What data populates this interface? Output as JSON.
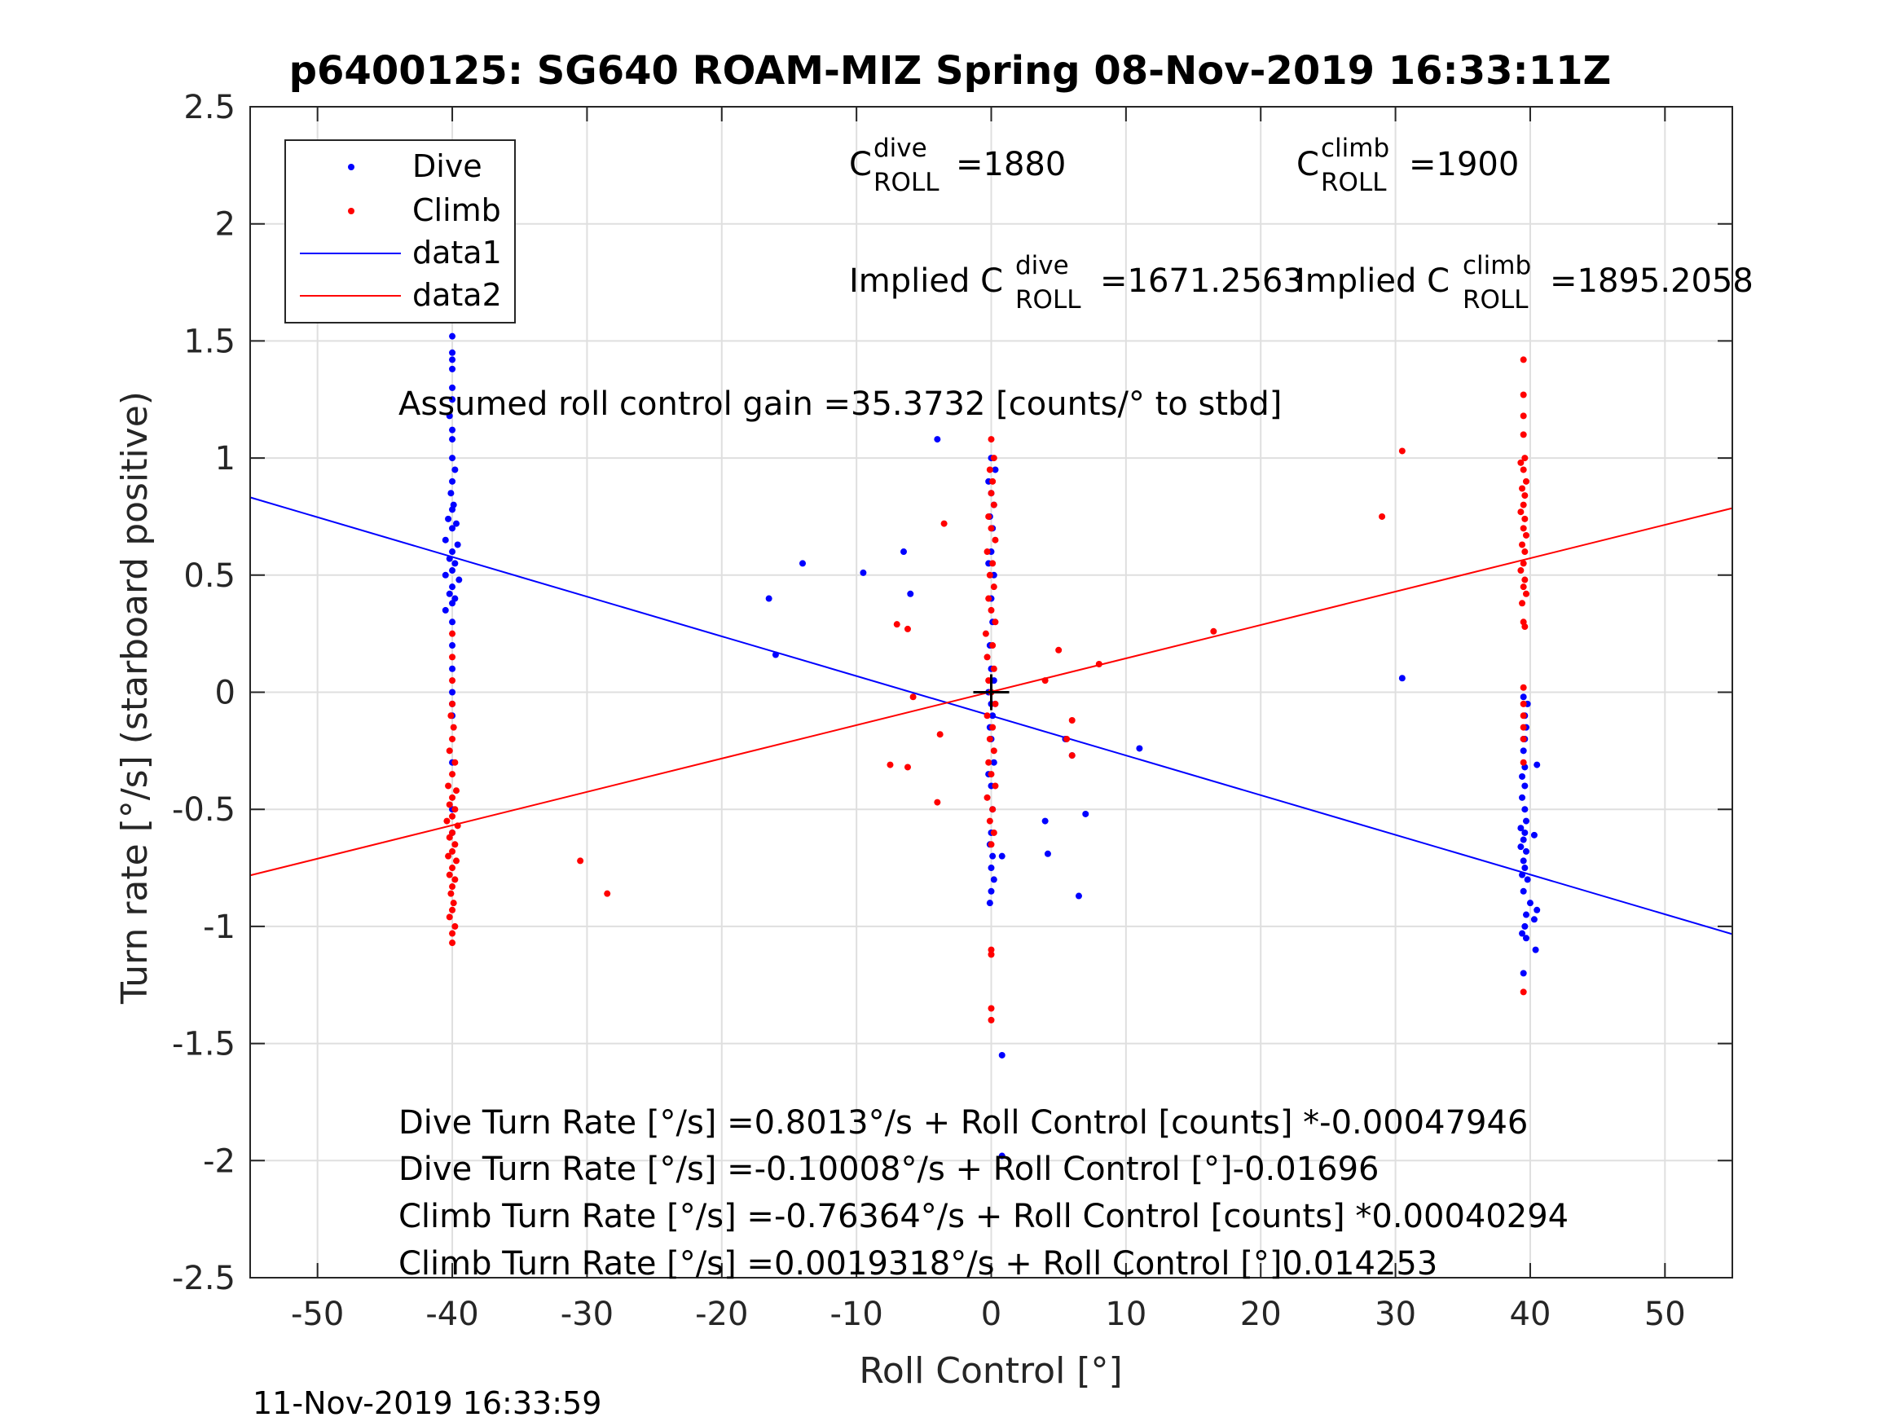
{
  "chart_data": {
    "type": "scatter",
    "title": "p6400125: SG640 ROAM-MIZ Spring 08-Nov-2019 16:33:11Z",
    "xlabel": "Roll Control [°]",
    "ylabel": "Turn rate [°/s] (starboard positive)",
    "xlim": [
      -55,
      55
    ],
    "ylim": [
      -2.5,
      2.5
    ],
    "xticks": [
      -50,
      -40,
      -30,
      -20,
      -10,
      0,
      10,
      20,
      30,
      40,
      50
    ],
    "yticks": [
      -2.5,
      -2,
      -1.5,
      -1,
      -0.5,
      0,
      0.5,
      1,
      1.5,
      2,
      2.5
    ],
    "grid": true,
    "legend_position": "top-left",
    "legend": [
      "Dive",
      "Climb",
      "data1",
      "data2"
    ],
    "colors": {
      "dive": "#0000ff",
      "climb": "#ff0000",
      "axes": "#262626",
      "grid": "#dfdfdf"
    },
    "series": [
      {
        "name": "Dive",
        "style": "points",
        "points": [
          [
            -40,
            1.87
          ],
          [
            -40,
            1.6
          ],
          [
            -40,
            1.52
          ],
          [
            -40,
            1.45
          ],
          [
            -40,
            1.42
          ],
          [
            -40,
            1.38
          ],
          [
            -40,
            1.3
          ],
          [
            -40,
            1.25
          ],
          [
            -40.2,
            1.18
          ],
          [
            -40,
            1.12
          ],
          [
            -40,
            1.08
          ],
          [
            -40,
            1.0
          ],
          [
            -39.8,
            0.95
          ],
          [
            -40,
            0.9
          ],
          [
            -40.1,
            0.85
          ],
          [
            -39.9,
            0.8
          ],
          [
            -40,
            0.78
          ],
          [
            -40.3,
            0.74
          ],
          [
            -39.7,
            0.72
          ],
          [
            -40,
            0.7
          ],
          [
            -40.5,
            0.65
          ],
          [
            -39.6,
            0.63
          ],
          [
            -40,
            0.6
          ],
          [
            -40.2,
            0.57
          ],
          [
            -39.8,
            0.55
          ],
          [
            -40,
            0.52
          ],
          [
            -40.5,
            0.5
          ],
          [
            -39.5,
            0.48
          ],
          [
            -40,
            0.45
          ],
          [
            -40.2,
            0.42
          ],
          [
            -39.8,
            0.4
          ],
          [
            -40,
            0.38
          ],
          [
            -40.5,
            0.35
          ],
          [
            -40,
            0.3
          ],
          [
            -40,
            0.2
          ],
          [
            -40,
            0.1
          ],
          [
            -40,
            0.0
          ],
          [
            -40,
            -0.05
          ],
          [
            -40,
            -0.1
          ],
          [
            -40,
            -0.3
          ],
          [
            -40,
            -0.5
          ],
          [
            -40,
            -0.6
          ],
          [
            -16.5,
            0.4
          ],
          [
            -14,
            0.55
          ],
          [
            -9.5,
            0.51
          ],
          [
            -6.5,
            0.6
          ],
          [
            -6,
            0.42
          ],
          [
            -4,
            1.08
          ],
          [
            -16,
            0.16
          ],
          [
            0,
            1.0
          ],
          [
            0.3,
            0.95
          ],
          [
            -0.2,
            0.9
          ],
          [
            0,
            0.85
          ],
          [
            0.2,
            0.8
          ],
          [
            -0.1,
            0.75
          ],
          [
            0.1,
            0.7
          ],
          [
            0,
            0.6
          ],
          [
            -0.2,
            0.55
          ],
          [
            0.2,
            0.5
          ],
          [
            0,
            0.4
          ],
          [
            0.1,
            0.3
          ],
          [
            -0.1,
            0.2
          ],
          [
            0,
            0.1
          ],
          [
            0.2,
            0.05
          ],
          [
            -0.2,
            0.0
          ],
          [
            0,
            -0.05
          ],
          [
            0.1,
            -0.1
          ],
          [
            -0.1,
            -0.15
          ],
          [
            0,
            -0.2
          ],
          [
            0.2,
            -0.3
          ],
          [
            -0.2,
            -0.35
          ],
          [
            0,
            -0.4
          ],
          [
            0.1,
            -0.5
          ],
          [
            0,
            -0.6
          ],
          [
            -0.1,
            -0.65
          ],
          [
            0.1,
            -0.7
          ],
          [
            0,
            -0.75
          ],
          [
            0.2,
            -0.8
          ],
          [
            0,
            -0.85
          ],
          [
            -0.1,
            -0.9
          ],
          [
            0.8,
            -0.7
          ],
          [
            0.8,
            -1.55
          ],
          [
            0.8,
            -1.98
          ],
          [
            4,
            -0.55
          ],
          [
            4.2,
            -0.69
          ],
          [
            6.5,
            -0.87
          ],
          [
            7,
            -0.52
          ],
          [
            6,
            -0.27
          ],
          [
            5.5,
            -0.2
          ],
          [
            11,
            -0.24
          ],
          [
            30.5,
            0.06
          ],
          [
            39.5,
            -0.02
          ],
          [
            39.8,
            -0.05
          ],
          [
            39.6,
            -0.1
          ],
          [
            39.7,
            -0.15
          ],
          [
            39.5,
            -0.2
          ],
          [
            39.6,
            -0.2
          ],
          [
            39.5,
            -0.25
          ],
          [
            40.5,
            -0.31
          ],
          [
            39.6,
            -0.32
          ],
          [
            39.4,
            -0.36
          ],
          [
            39.6,
            -0.4
          ],
          [
            39.4,
            -0.45
          ],
          [
            39.6,
            -0.5
          ],
          [
            39.7,
            -0.55
          ],
          [
            39.3,
            -0.58
          ],
          [
            39.6,
            -0.6
          ],
          [
            40.3,
            -0.61
          ],
          [
            39.5,
            -0.63
          ],
          [
            39.3,
            -0.66
          ],
          [
            39.7,
            -0.68
          ],
          [
            39.5,
            -0.72
          ],
          [
            39.6,
            -0.75
          ],
          [
            39.4,
            -0.78
          ],
          [
            39.8,
            -0.8
          ],
          [
            39.5,
            -0.85
          ],
          [
            40,
            -0.9
          ],
          [
            40.5,
            -0.93
          ],
          [
            39.7,
            -0.95
          ],
          [
            40.3,
            -0.97
          ],
          [
            39.6,
            -1.0
          ],
          [
            39.4,
            -1.03
          ],
          [
            39.7,
            -1.05
          ],
          [
            40.4,
            -1.1
          ],
          [
            39.5,
            -1.2
          ]
        ]
      },
      {
        "name": "Climb",
        "style": "points",
        "points": [
          [
            -40,
            0.25
          ],
          [
            -40,
            0.15
          ],
          [
            -40,
            0.05
          ],
          [
            -40,
            -0.05
          ],
          [
            -40.1,
            -0.1
          ],
          [
            -39.9,
            -0.15
          ],
          [
            -40,
            -0.2
          ],
          [
            -40.2,
            -0.25
          ],
          [
            -39.8,
            -0.3
          ],
          [
            -40,
            -0.35
          ],
          [
            -40.3,
            -0.4
          ],
          [
            -39.7,
            -0.42
          ],
          [
            -40,
            -0.45
          ],
          [
            -40.2,
            -0.48
          ],
          [
            -39.8,
            -0.5
          ],
          [
            -40,
            -0.53
          ],
          [
            -40.4,
            -0.55
          ],
          [
            -39.6,
            -0.57
          ],
          [
            -40,
            -0.6
          ],
          [
            -40.2,
            -0.62
          ],
          [
            -39.8,
            -0.65
          ],
          [
            -40,
            -0.68
          ],
          [
            -40.3,
            -0.7
          ],
          [
            -39.7,
            -0.72
          ],
          [
            -40,
            -0.75
          ],
          [
            -40.2,
            -0.78
          ],
          [
            -39.8,
            -0.8
          ],
          [
            -40,
            -0.83
          ],
          [
            -40.1,
            -0.86
          ],
          [
            -39.9,
            -0.9
          ],
          [
            -40,
            -0.93
          ],
          [
            -40.2,
            -0.96
          ],
          [
            -39.8,
            -1.0
          ],
          [
            -40,
            -1.03
          ],
          [
            -40,
            -1.07
          ],
          [
            -30.5,
            -0.72
          ],
          [
            -28.5,
            -0.86
          ],
          [
            -3.5,
            0.72
          ],
          [
            -7,
            0.29
          ],
          [
            -6.2,
            0.27
          ],
          [
            -5.8,
            -0.02
          ],
          [
            -3.8,
            -0.18
          ],
          [
            -7.5,
            -0.31
          ],
          [
            -6.2,
            -0.32
          ],
          [
            -4,
            -0.47
          ],
          [
            0,
            1.08
          ],
          [
            0.2,
            1.0
          ],
          [
            -0.1,
            0.95
          ],
          [
            0.1,
            0.9
          ],
          [
            0,
            0.85
          ],
          [
            0.2,
            0.8
          ],
          [
            -0.2,
            0.75
          ],
          [
            0,
            0.7
          ],
          [
            0.3,
            0.65
          ],
          [
            -0.3,
            0.6
          ],
          [
            0.1,
            0.55
          ],
          [
            -0.1,
            0.5
          ],
          [
            0.2,
            0.45
          ],
          [
            -0.2,
            0.4
          ],
          [
            0,
            0.35
          ],
          [
            0.3,
            0.3
          ],
          [
            -0.4,
            0.25
          ],
          [
            0.1,
            0.2
          ],
          [
            -0.3,
            0.15
          ],
          [
            0.2,
            0.1
          ],
          [
            -0.2,
            0.05
          ],
          [
            0,
            0.0
          ],
          [
            0.3,
            -0.05
          ],
          [
            -0.3,
            -0.1
          ],
          [
            0.1,
            -0.15
          ],
          [
            -0.1,
            -0.2
          ],
          [
            0.2,
            -0.25
          ],
          [
            -0.2,
            -0.3
          ],
          [
            0,
            -0.35
          ],
          [
            0.3,
            -0.4
          ],
          [
            -0.3,
            -0.45
          ],
          [
            0.1,
            -0.5
          ],
          [
            -0.1,
            -0.55
          ],
          [
            0.2,
            -0.6
          ],
          [
            0,
            -0.65
          ],
          [
            0,
            -1.1
          ],
          [
            0,
            -1.12
          ],
          [
            0,
            -1.35
          ],
          [
            0,
            -1.4
          ],
          [
            4,
            0.05
          ],
          [
            5,
            0.18
          ],
          [
            5.6,
            -0.2
          ],
          [
            6,
            -0.12
          ],
          [
            6,
            -0.27
          ],
          [
            8,
            0.12
          ],
          [
            16.5,
            0.26
          ],
          [
            29,
            0.75
          ],
          [
            30.5,
            1.03
          ],
          [
            39.5,
            1.42
          ],
          [
            39.5,
            1.27
          ],
          [
            39.5,
            1.18
          ],
          [
            39.5,
            1.1
          ],
          [
            39.6,
            1.0
          ],
          [
            39.3,
            0.98
          ],
          [
            39.5,
            0.95
          ],
          [
            39.7,
            0.9
          ],
          [
            39.4,
            0.87
          ],
          [
            39.6,
            0.84
          ],
          [
            39.5,
            0.8
          ],
          [
            39.3,
            0.77
          ],
          [
            39.6,
            0.74
          ],
          [
            39.5,
            0.7
          ],
          [
            39.7,
            0.67
          ],
          [
            39.4,
            0.63
          ],
          [
            39.6,
            0.6
          ],
          [
            39.5,
            0.55
          ],
          [
            39.3,
            0.52
          ],
          [
            39.6,
            0.48
          ],
          [
            39.5,
            0.45
          ],
          [
            39.7,
            0.42
          ],
          [
            39.4,
            0.38
          ],
          [
            39.5,
            0.3
          ],
          [
            39.6,
            0.28
          ],
          [
            39.5,
            0.02
          ],
          [
            39.5,
            -0.05
          ],
          [
            39.5,
            -0.1
          ],
          [
            39.5,
            -0.15
          ],
          [
            39.5,
            -0.2
          ],
          [
            39.5,
            -0.3
          ],
          [
            39.5,
            -1.28
          ]
        ]
      },
      {
        "name": "data1",
        "style": "line",
        "points": [
          [
            -55,
            0.832
          ],
          [
            55,
            -1.033
          ]
        ]
      },
      {
        "name": "data2",
        "style": "line",
        "points": [
          [
            -55,
            -0.782
          ],
          [
            55,
            0.786
          ]
        ]
      }
    ],
    "annotations": {
      "c_dive": {
        "base": "C",
        "sup": "dive",
        "sub": "ROLL",
        "value": "=1880"
      },
      "c_climb": {
        "base": "C",
        "sup": "climb",
        "sub": "ROLL",
        "value": "=1900"
      },
      "implied_dive": {
        "base": "Implied C",
        "sup": "dive",
        "sub": "ROLL",
        "value": "=1671.2563"
      },
      "implied_climb": {
        "base": "Implied C",
        "sup": "climb",
        "sub": "ROLL",
        "value": "=1895.2058"
      },
      "gain": "Assumed roll control gain =35.3732 [counts/° to stbd]",
      "eq1": "Dive Turn Rate [°/s] =0.8013°/s + Roll Control [counts] *-0.00047946",
      "eq2": "Dive Turn Rate [°/s] =-0.10008°/s + Roll Control [°]-0.01696",
      "eq3": "Climb Turn Rate [°/s] =-0.76364°/s + Roll Control [counts] *0.00040294",
      "eq4": "Climb Turn Rate [°/s] =0.0019318°/s + Roll Control [°]0.014253"
    },
    "center_marker": [
      0,
      0
    ]
  },
  "timestamp": "11-Nov-2019 16:33:59"
}
